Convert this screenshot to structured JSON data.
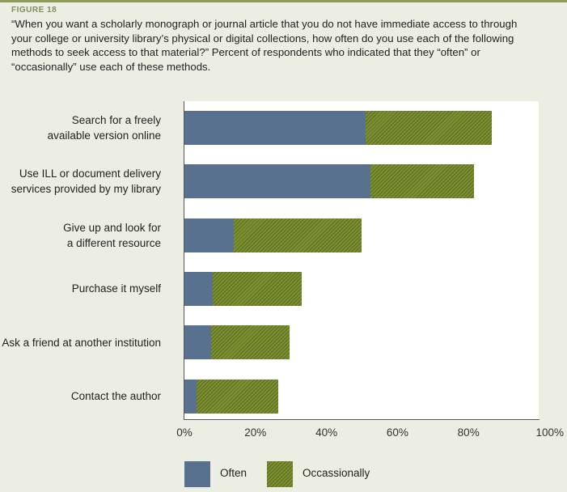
{
  "figure_label": "FIGURE 18",
  "question": "“When you want a scholarly monograph or journal article that you do not have immediate access to through your college or university library’s physical or digital collections, how often do you use each of the following methods to seek access to that material?” Percent of respondents who indicated that they “often” or “occasionally” use each of these methods.",
  "colors": {
    "often": "#58718f",
    "occasionally": "#7c9031",
    "accent": "#8e9a5a"
  },
  "chart_data": {
    "type": "bar",
    "orientation": "horizontal",
    "stacked": true,
    "categories": [
      [
        "Search for a freely",
        "available version online"
      ],
      [
        "Use ILL or document delivery",
        "services provided by my library"
      ],
      [
        "Give up and look for",
        "a different resource"
      ],
      [
        "Purchase it myself"
      ],
      [
        "Ask a friend at another institution"
      ],
      [
        "Contact the author"
      ]
    ],
    "series": [
      {
        "name": "Often",
        "values": [
          51,
          52.5,
          14,
          8,
          7.5,
          3.5
        ]
      },
      {
        "name": "Occassionally",
        "values": [
          35.5,
          29,
          36,
          25,
          22,
          23
        ]
      }
    ],
    "xlim": [
      0,
      100
    ],
    "xticks": [
      "0%",
      "20%",
      "40%",
      "60%",
      "80%",
      "100%"
    ],
    "xtick_values": [
      0,
      20,
      40,
      60,
      80,
      100
    ],
    "legend": {
      "often": "Often",
      "occasionally": "Occassionally",
      "placement": "bottom"
    }
  }
}
